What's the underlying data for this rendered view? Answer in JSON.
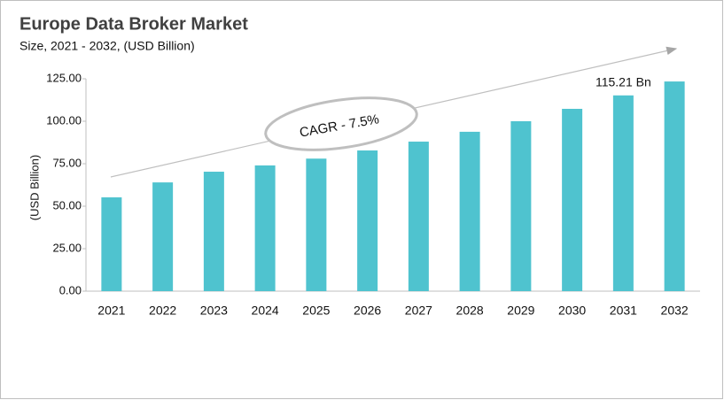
{
  "chart_data": {
    "type": "bar",
    "title": "Europe Data Broker Market",
    "subtitle": "Size, 2021 - 2032, (USD Billion)",
    "y_label": "(USD Billion)",
    "categories": [
      "2021",
      "2022",
      "2023",
      "2024",
      "2025",
      "2026",
      "2027",
      "2028",
      "2029",
      "2030",
      "2031",
      "2032"
    ],
    "values": [
      55.2,
      64,
      70.3,
      74,
      78,
      82.8,
      88,
      93.8,
      100,
      107.3,
      115.21,
      123.4
    ],
    "value_labels": [
      null,
      null,
      null,
      null,
      null,
      null,
      null,
      null,
      null,
      null,
      "115.21 Bn",
      null
    ],
    "color": "#4fc3cf",
    "ylim": [
      0,
      125
    ],
    "yticks": [
      {
        "value": 0,
        "label": "0.00"
      },
      {
        "value": 25,
        "label": "25.00"
      },
      {
        "value": 50,
        "label": "50.00"
      },
      {
        "value": 75,
        "label": "75.00"
      },
      {
        "value": 100,
        "label": "100.00"
      },
      {
        "value": 125,
        "label": "125.00"
      }
    ],
    "annotation": "CAGR - 7.5%"
  }
}
